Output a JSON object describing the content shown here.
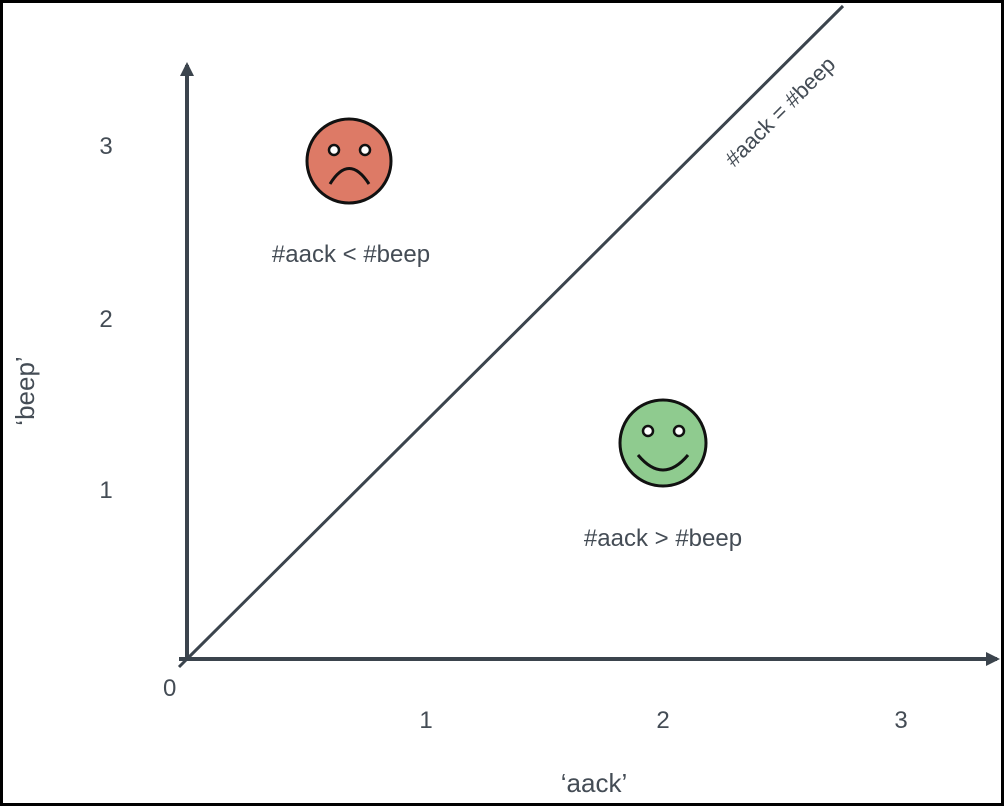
{
  "axes": {
    "x_label": "‘aack’",
    "y_label": "‘beep’",
    "origin_label": "0",
    "x_ticks": [
      "1",
      "2",
      "3"
    ],
    "y_ticks": [
      "1",
      "2",
      "3"
    ]
  },
  "diagonal": {
    "label": "#aack = #beep"
  },
  "regions": [
    {
      "face": "sad",
      "label": "#aack < #beep",
      "color": "#dd7a66"
    },
    {
      "face": "happy",
      "label": "#aack > #beep",
      "color": "#8fcb8f"
    }
  ],
  "colors": {
    "axis": "#3b444d",
    "text": "#444c55",
    "face_outline": "#111111"
  }
}
